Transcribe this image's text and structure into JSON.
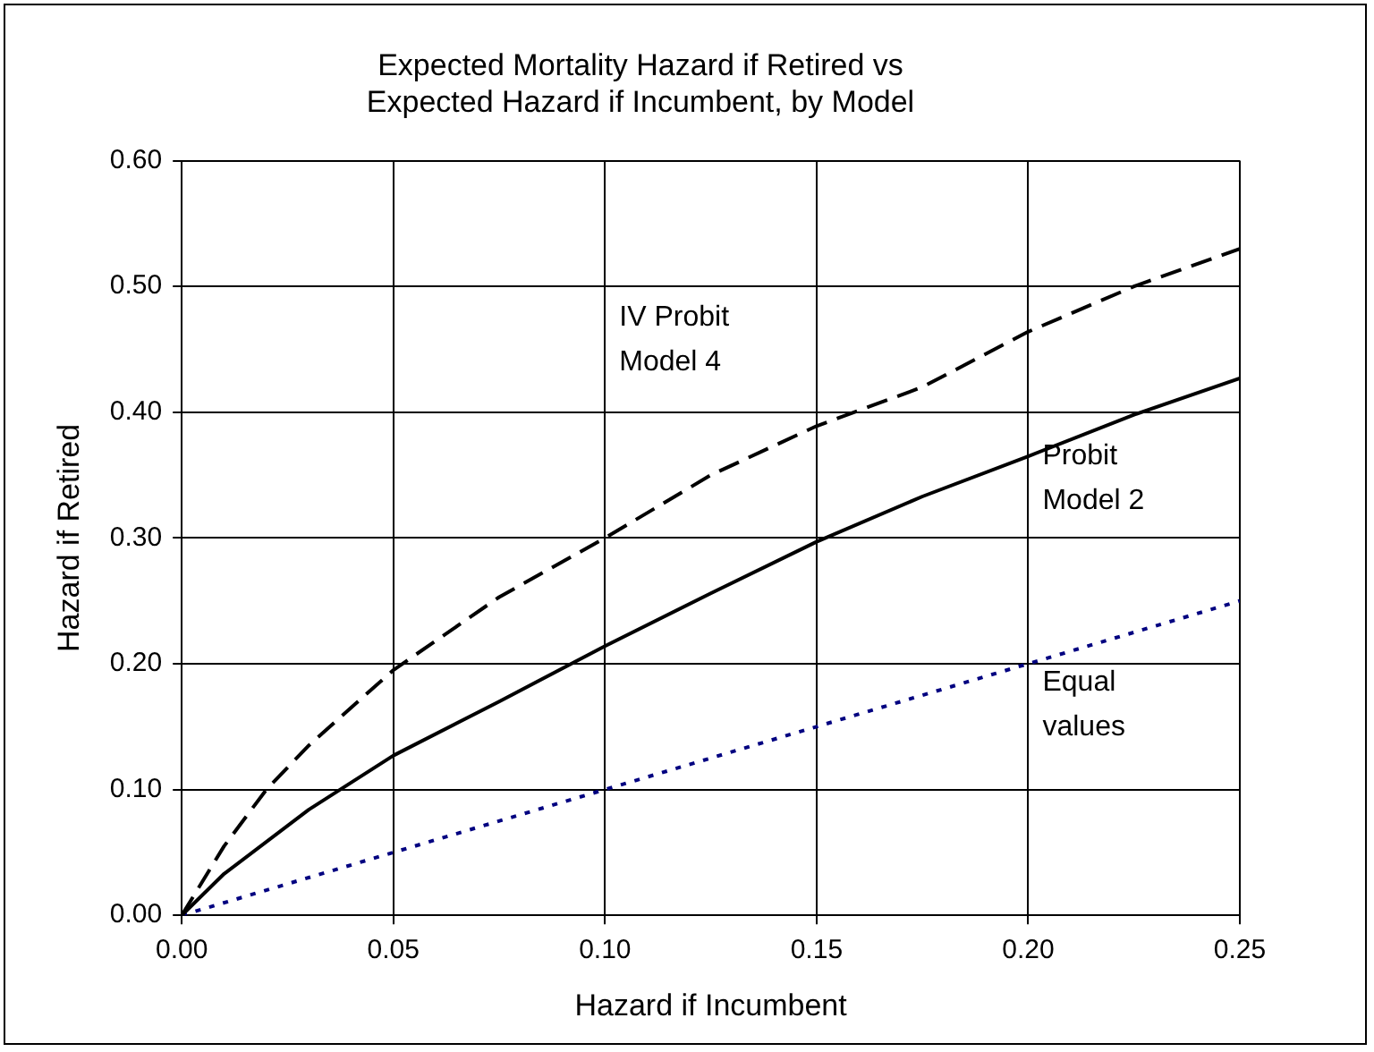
{
  "chart_data": {
    "type": "line",
    "title": [
      "Expected Mortality Hazard if Retired vs",
      "Expected Hazard if Incumbent, by Model"
    ],
    "xlabel": "Hazard if Incumbent",
    "ylabel": "Hazard if Retired",
    "xlim": [
      0,
      0.25
    ],
    "xticks": [
      {
        "value": 0,
        "label": "0.00"
      },
      {
        "value": 0.05,
        "label": "0.05"
      },
      {
        "value": 0.1,
        "label": "0.10"
      },
      {
        "value": 0.15,
        "label": "0.15"
      },
      {
        "value": 0.2,
        "label": "0.20"
      },
      {
        "value": 0.25,
        "label": "0.25"
      }
    ],
    "ylim": [
      0,
      0.6
    ],
    "yticks": [
      {
        "value": 0,
        "label": "0.00"
      },
      {
        "value": 0.1,
        "label": "0.10"
      },
      {
        "value": 0.2,
        "label": "0.20"
      },
      {
        "value": 0.3,
        "label": "0.30"
      },
      {
        "value": 0.4,
        "label": "0.40"
      },
      {
        "value": 0.5,
        "label": "0.50"
      },
      {
        "value": 0.6,
        "label": "0.60"
      }
    ],
    "grid": true,
    "legend": false,
    "marker": "none",
    "series": [
      {
        "name": "IV Probit Model 4",
        "color": "#000000",
        "line_style": "dashed",
        "x": [
          0,
          0.01,
          0.02,
          0.03,
          0.05,
          0.075,
          0.1,
          0.125,
          0.15,
          0.175,
          0.2,
          0.225,
          0.25
        ],
        "values": [
          0,
          0.055,
          0.1,
          0.135,
          0.195,
          0.253,
          0.3,
          0.35,
          0.389,
          0.42,
          0.464,
          0.5,
          0.53
        ]
      },
      {
        "name": "Probit Model 2",
        "color": "#000000",
        "line_style": "solid",
        "x": [
          0,
          0.01,
          0.03,
          0.05,
          0.075,
          0.1,
          0.125,
          0.15,
          0.175,
          0.2,
          0.225,
          0.25
        ],
        "values": [
          0,
          0.033,
          0.084,
          0.127,
          0.17,
          0.214,
          0.256,
          0.297,
          0.333,
          0.365,
          0.398,
          0.427
        ]
      },
      {
        "name": "Equal values",
        "color": "#000080",
        "line_style": "dotted",
        "x": [
          0,
          0.25
        ],
        "values": [
          0,
          0.25
        ]
      }
    ]
  }
}
